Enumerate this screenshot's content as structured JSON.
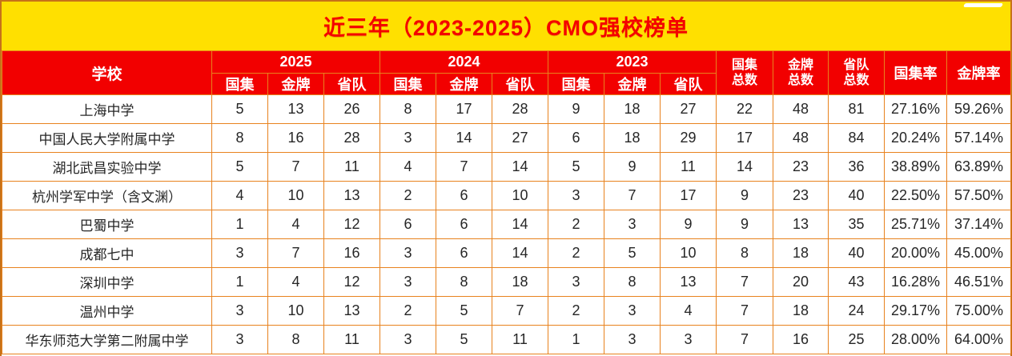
{
  "title": "近三年（2023-2025）CMO强校榜单",
  "colors": {
    "title_bg": "#FFE000",
    "title_text": "#F40000",
    "header_bg": "#F20000",
    "header_text": "#FFFFFF",
    "border": "#E8821E",
    "outer_border": "#C77219",
    "cell_bg": "#FFFFFF",
    "cell_text": "#262626",
    "gloss": "#FFFFFF"
  },
  "chart_data": {
    "type": "table",
    "title": "近三年（2023-2025）CMO强校榜单",
    "school_header": "学校",
    "year_groups": [
      {
        "year": "2025",
        "sub_columns": [
          "国集",
          "金牌",
          "省队"
        ]
      },
      {
        "year": "2024",
        "sub_columns": [
          "国集",
          "金牌",
          "省队"
        ]
      },
      {
        "year": "2023",
        "sub_columns": [
          "国集",
          "金牌",
          "省队"
        ]
      }
    ],
    "total_headers": [
      {
        "line1": "国集",
        "line2": "总数"
      },
      {
        "line1": "金牌",
        "line2": "总数"
      },
      {
        "line1": "省队",
        "line2": "总数"
      }
    ],
    "rate_headers": [
      "国集率",
      "金牌率"
    ],
    "rows": [
      {
        "school": "上海中学",
        "values": [
          "5",
          "13",
          "26",
          "8",
          "17",
          "28",
          "9",
          "18",
          "27",
          "22",
          "48",
          "81",
          "27.16%",
          "59.26%"
        ]
      },
      {
        "school": "中国人民大学附属中学",
        "values": [
          "8",
          "16",
          "28",
          "3",
          "14",
          "27",
          "6",
          "18",
          "29",
          "17",
          "48",
          "84",
          "20.24%",
          "57.14%"
        ]
      },
      {
        "school": "湖北武昌实验中学",
        "values": [
          "5",
          "7",
          "11",
          "4",
          "7",
          "14",
          "5",
          "9",
          "11",
          "14",
          "23",
          "36",
          "38.89%",
          "63.89%"
        ]
      },
      {
        "school": "杭州学军中学（含文渊）",
        "values": [
          "4",
          "10",
          "13",
          "2",
          "6",
          "10",
          "3",
          "7",
          "17",
          "9",
          "23",
          "40",
          "22.50%",
          "57.50%"
        ]
      },
      {
        "school": "巴蜀中学",
        "values": [
          "1",
          "4",
          "12",
          "6",
          "6",
          "14",
          "2",
          "3",
          "9",
          "9",
          "13",
          "35",
          "25.71%",
          "37.14%"
        ]
      },
      {
        "school": "成都七中",
        "values": [
          "3",
          "7",
          "16",
          "3",
          "6",
          "14",
          "2",
          "5",
          "10",
          "8",
          "18",
          "40",
          "20.00%",
          "45.00%"
        ]
      },
      {
        "school": "深圳中学",
        "values": [
          "1",
          "4",
          "12",
          "3",
          "8",
          "18",
          "3",
          "8",
          "13",
          "7",
          "20",
          "43",
          "16.28%",
          "46.51%"
        ]
      },
      {
        "school": "温州中学",
        "values": [
          "3",
          "10",
          "13",
          "2",
          "5",
          "7",
          "2",
          "3",
          "4",
          "7",
          "18",
          "24",
          "29.17%",
          "75.00%"
        ]
      },
      {
        "school": "华东师范大学第二附属中学",
        "values": [
          "3",
          "8",
          "11",
          "3",
          "5",
          "11",
          "1",
          "3",
          "3",
          "7",
          "16",
          "25",
          "28.00%",
          "64.00%"
        ]
      }
    ]
  }
}
